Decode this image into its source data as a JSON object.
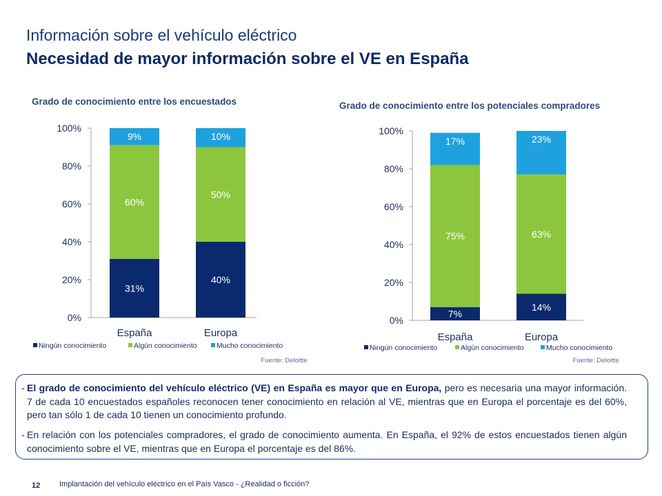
{
  "header": {
    "title": "Información sobre el vehículo eléctrico",
    "subtitle": "Necesidad de mayor información sobre el VE en España"
  },
  "legend": {
    "items": [
      "Ningún conocimiento",
      "Algún conocimiento",
      "Mucho conocimiento"
    ]
  },
  "colors": {
    "ninguno": "#0b2a6e",
    "alguno": "#8cc63f",
    "mucho": "#1fa1dd"
  },
  "chart_data": [
    {
      "type": "bar",
      "stacked": true,
      "title": "Grado de conocimiento entre los encuestados",
      "categories": [
        "España",
        "Europa"
      ],
      "series": [
        {
          "name": "Ningún conocimiento",
          "values": [
            31,
            40
          ],
          "labels": [
            "31%",
            "40%"
          ]
        },
        {
          "name": "Algún conocimiento",
          "values": [
            60,
            50
          ],
          "labels": [
            "60%",
            "50%"
          ]
        },
        {
          "name": "Mucho conocimiento",
          "values": [
            9,
            10
          ],
          "labels": [
            "9%",
            "10%"
          ]
        }
      ],
      "yticks": [
        "0%",
        "20%",
        "40%",
        "60%",
        "80%",
        "100%"
      ],
      "ylim": [
        0,
        100
      ],
      "source": "Fuente: Deloitte",
      "legend_position": "bottom"
    },
    {
      "type": "bar",
      "stacked": true,
      "title": "Grado de conocimiento entre los potenciales compradores",
      "categories": [
        "España",
        "Europa"
      ],
      "series": [
        {
          "name": "Ningún conocimiento",
          "values": [
            7,
            14
          ],
          "labels": [
            "7%",
            "14%"
          ]
        },
        {
          "name": "Algún conocimiento",
          "values": [
            75,
            63
          ],
          "labels": [
            "75%",
            "63%"
          ]
        },
        {
          "name": "Mucho conocimiento",
          "values": [
            17,
            23
          ],
          "labels": [
            "17%",
            "23%"
          ]
        }
      ],
      "yticks": [
        "0%",
        "20%",
        "40%",
        "60%",
        "80%",
        "100%"
      ],
      "ylim": [
        0,
        100
      ],
      "source": "Fuente: Deloitte",
      "legend_position": "bottom"
    }
  ],
  "summary": {
    "b1_bold": "El grado de conocimiento del vehículo eléctrico (VE) en España es mayor que en Europa,",
    "b1_rest": " pero es necesaria una mayor información. 7 de cada 10 encuestados españoles reconocen tener conocimiento en relación al VE, mientras que en Europa el porcentaje es del 60%, pero tan sólo 1 de cada 10 tienen un conocimiento profundo.",
    "b2": "En relación con los potenciales compradores, el grado de conocimiento aumenta. En España, el 92% de estos encuestados tienen algún conocimiento sobre el VE, mientras que en Europa el porcentaje es del 86%."
  },
  "footer": {
    "page_number": "12",
    "text": "Implantación del vehículo eléctrico en el País Vasco - ¿Realidad o ficción?"
  }
}
